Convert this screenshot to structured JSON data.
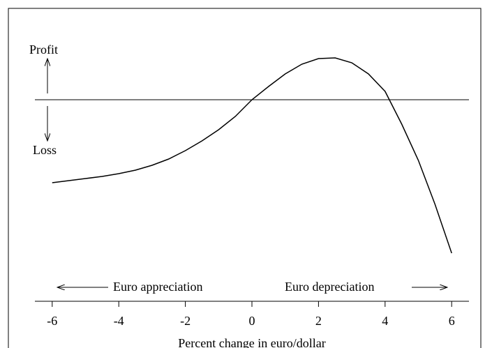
{
  "chart_data": {
    "type": "line",
    "x_label": "Percent change in euro/dollar",
    "annotations": [
      "Profit",
      "Loss",
      "Euro appreciation",
      "Euro depreciation"
    ],
    "x": [
      -6,
      -5.5,
      -5,
      -4.5,
      -4,
      -3.5,
      -3,
      -2.5,
      -2,
      -1.5,
      -1,
      -0.5,
      0,
      0.5,
      1,
      1.5,
      2,
      2.5,
      3,
      3.5,
      4,
      4.5,
      5,
      5.5,
      6
    ],
    "series": [
      {
        "color": "#000000",
        "values": [
          -1.19,
          -1.16,
          -1.13,
          -1.1,
          -1.06,
          -1.01,
          -0.94,
          -0.85,
          -0.73,
          -0.59,
          -0.43,
          -0.24,
          0,
          0.19,
          0.37,
          0.51,
          0.59,
          0.6,
          0.53,
          0.37,
          0.12,
          -0.35,
          -0.87,
          -1.5,
          -2.2
        ]
      }
    ],
    "hline": 0,
    "xlim": [
      -6.52,
      6.52
    ],
    "ylim": [
      -2.89,
      1.31
    ],
    "xticks": [
      -6,
      -4,
      -2,
      0,
      2,
      4,
      6
    ]
  }
}
